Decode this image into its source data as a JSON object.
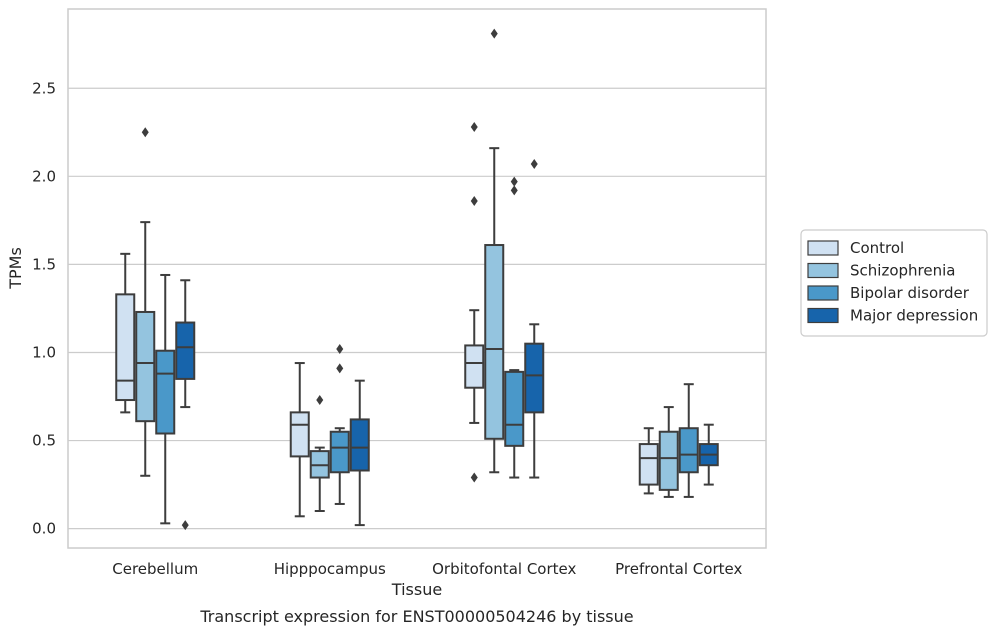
{
  "chart_data": {
    "type": "boxplot",
    "title": "",
    "caption": "Transcript expression for ENST00000504246 by tissue",
    "xlabel": "Tissue",
    "ylabel": "TPMs",
    "ylim": [
      -0.11,
      2.95
    ],
    "yticks": [
      0.0,
      0.5,
      1.0,
      1.5,
      2.0,
      2.5
    ],
    "ytick_labels": [
      "0.0",
      "0.5",
      "1.0",
      "1.5",
      "2.0",
      "2.5"
    ],
    "grid": "horizontal",
    "legend_position": "right",
    "categories": [
      "Cerebellum",
      "Hipppocampus",
      "Orbitofontal Cortex",
      "Prefrontal Cortex"
    ],
    "series": [
      {
        "name": "Control",
        "color": "#d0e1f2",
        "boxes": [
          {
            "whisker_low": 0.66,
            "q1": 0.73,
            "median": 0.84,
            "q3": 1.33,
            "whisker_high": 1.56,
            "outliers": []
          },
          {
            "whisker_low": 0.07,
            "q1": 0.41,
            "median": 0.59,
            "q3": 0.66,
            "whisker_high": 0.94,
            "outliers": []
          },
          {
            "whisker_low": 0.6,
            "q1": 0.8,
            "median": 0.94,
            "q3": 1.04,
            "whisker_high": 1.24,
            "outliers": [
              0.29,
              1.86,
              2.28
            ]
          },
          {
            "whisker_low": 0.2,
            "q1": 0.25,
            "median": 0.4,
            "q3": 0.48,
            "whisker_high": 0.57,
            "outliers": []
          }
        ]
      },
      {
        "name": "Schizophrenia",
        "color": "#94c4df",
        "boxes": [
          {
            "whisker_low": 0.3,
            "q1": 0.61,
            "median": 0.94,
            "q3": 1.23,
            "whisker_high": 1.74,
            "outliers": [
              2.25
            ]
          },
          {
            "whisker_low": 0.1,
            "q1": 0.29,
            "median": 0.36,
            "q3": 0.44,
            "whisker_high": 0.46,
            "outliers": [
              0.73
            ]
          },
          {
            "whisker_low": 0.32,
            "q1": 0.51,
            "median": 1.02,
            "q3": 1.61,
            "whisker_high": 2.16,
            "outliers": [
              2.81
            ]
          },
          {
            "whisker_low": 0.18,
            "q1": 0.22,
            "median": 0.4,
            "q3": 0.55,
            "whisker_high": 0.69,
            "outliers": []
          }
        ]
      },
      {
        "name": "Bipolar disorder",
        "color": "#4a98c9",
        "boxes": [
          {
            "whisker_low": 0.03,
            "q1": 0.54,
            "median": 0.88,
            "q3": 1.01,
            "whisker_high": 1.44,
            "outliers": []
          },
          {
            "whisker_low": 0.14,
            "q1": 0.32,
            "median": 0.46,
            "q3": 0.55,
            "whisker_high": 0.57,
            "outliers": [
              0.91,
              1.02
            ]
          },
          {
            "whisker_low": 0.29,
            "q1": 0.47,
            "median": 0.59,
            "q3": 0.89,
            "whisker_high": 0.9,
            "outliers": [
              1.92,
              1.97
            ]
          },
          {
            "whisker_low": 0.18,
            "q1": 0.32,
            "median": 0.42,
            "q3": 0.57,
            "whisker_high": 0.82,
            "outliers": []
          }
        ]
      },
      {
        "name": "Major depression",
        "color": "#1764ab",
        "boxes": [
          {
            "whisker_low": 0.69,
            "q1": 0.85,
            "median": 1.03,
            "q3": 1.17,
            "whisker_high": 1.41,
            "outliers": [
              0.02
            ]
          },
          {
            "whisker_low": 0.02,
            "q1": 0.33,
            "median": 0.46,
            "q3": 0.62,
            "whisker_high": 0.84,
            "outliers": []
          },
          {
            "whisker_low": 0.29,
            "q1": 0.66,
            "median": 0.87,
            "q3": 1.05,
            "whisker_high": 1.16,
            "outliers": [
              2.07
            ]
          },
          {
            "whisker_low": 0.25,
            "q1": 0.36,
            "median": 0.42,
            "q3": 0.48,
            "whisker_high": 0.59,
            "outliers": []
          }
        ]
      }
    ]
  }
}
